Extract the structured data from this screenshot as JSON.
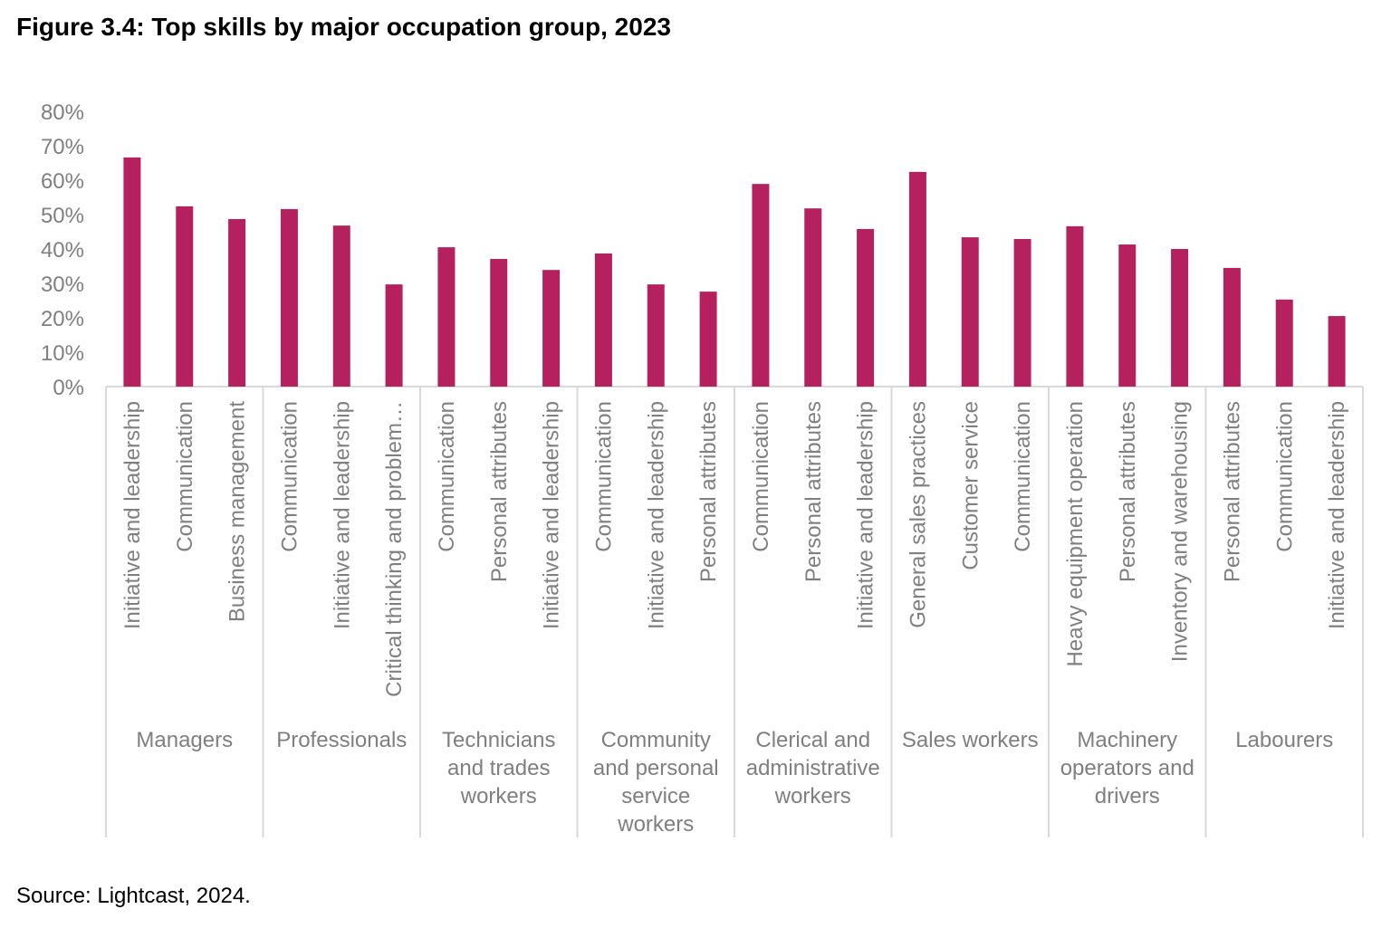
{
  "title": "Figure 3.4: Top skills by major occupation group, 2023",
  "source": "Source:  Lightcast, 2024.",
  "chart_data": {
    "type": "bar",
    "title": "Figure 3.4: Top skills by major occupation group, 2023",
    "xlabel": "",
    "ylabel": "",
    "ylim": [
      0,
      80
    ],
    "yticks": [
      "0%",
      "10%",
      "20%",
      "30%",
      "40%",
      "50%",
      "60%",
      "70%",
      "80%"
    ],
    "grid": false,
    "legend": "none",
    "bar_color": "#B5215E",
    "groups": [
      {
        "name": "Managers",
        "categories": [
          "Initiative and leadership",
          "Communication",
          "Business management"
        ],
        "values": [
          66.6,
          52.4,
          48.7
        ]
      },
      {
        "name": "Professionals",
        "categories": [
          "Communication",
          "Initiative and leadership",
          "Critical thinking and problem…"
        ],
        "values": [
          51.6,
          46.8,
          29.7
        ]
      },
      {
        "name": "Technicians and trades workers",
        "categories": [
          "Communication",
          "Personal attributes",
          "Initiative and leadership"
        ],
        "values": [
          40.5,
          37.1,
          33.9
        ]
      },
      {
        "name": "Community and personal service workers",
        "categories": [
          "Communication",
          "Initiative and leadership",
          "Personal attributes"
        ],
        "values": [
          38.7,
          29.7,
          27.6
        ]
      },
      {
        "name": "Clerical and administrative workers",
        "categories": [
          "Communication",
          "Personal attributes",
          "Initiative and leadership"
        ],
        "values": [
          58.9,
          51.8,
          45.8
        ]
      },
      {
        "name": "Sales workers",
        "categories": [
          "General sales practices",
          "Customer service",
          "Communication"
        ],
        "values": [
          62.4,
          43.4,
          42.9
        ]
      },
      {
        "name": "Machinery operators and drivers",
        "categories": [
          "Heavy equipment operation",
          "Personal attributes",
          "Inventory and warehousing"
        ],
        "values": [
          46.6,
          41.3,
          40.0
        ]
      },
      {
        "name": "Labourers",
        "categories": [
          "Personal attributes",
          "Communication",
          "Initiative and leadership"
        ],
        "values": [
          34.5,
          25.3,
          20.5
        ]
      }
    ],
    "group_label_lines": [
      [
        "Managers"
      ],
      [
        "Professionals"
      ],
      [
        "Technicians",
        "and trades",
        "workers"
      ],
      [
        "Community",
        "and personal",
        "service",
        "workers"
      ],
      [
        "Clerical and",
        "administrative",
        "workers"
      ],
      [
        "Sales workers"
      ],
      [
        "Machinery",
        "operators and",
        "drivers"
      ],
      [
        "Labourers"
      ]
    ]
  }
}
